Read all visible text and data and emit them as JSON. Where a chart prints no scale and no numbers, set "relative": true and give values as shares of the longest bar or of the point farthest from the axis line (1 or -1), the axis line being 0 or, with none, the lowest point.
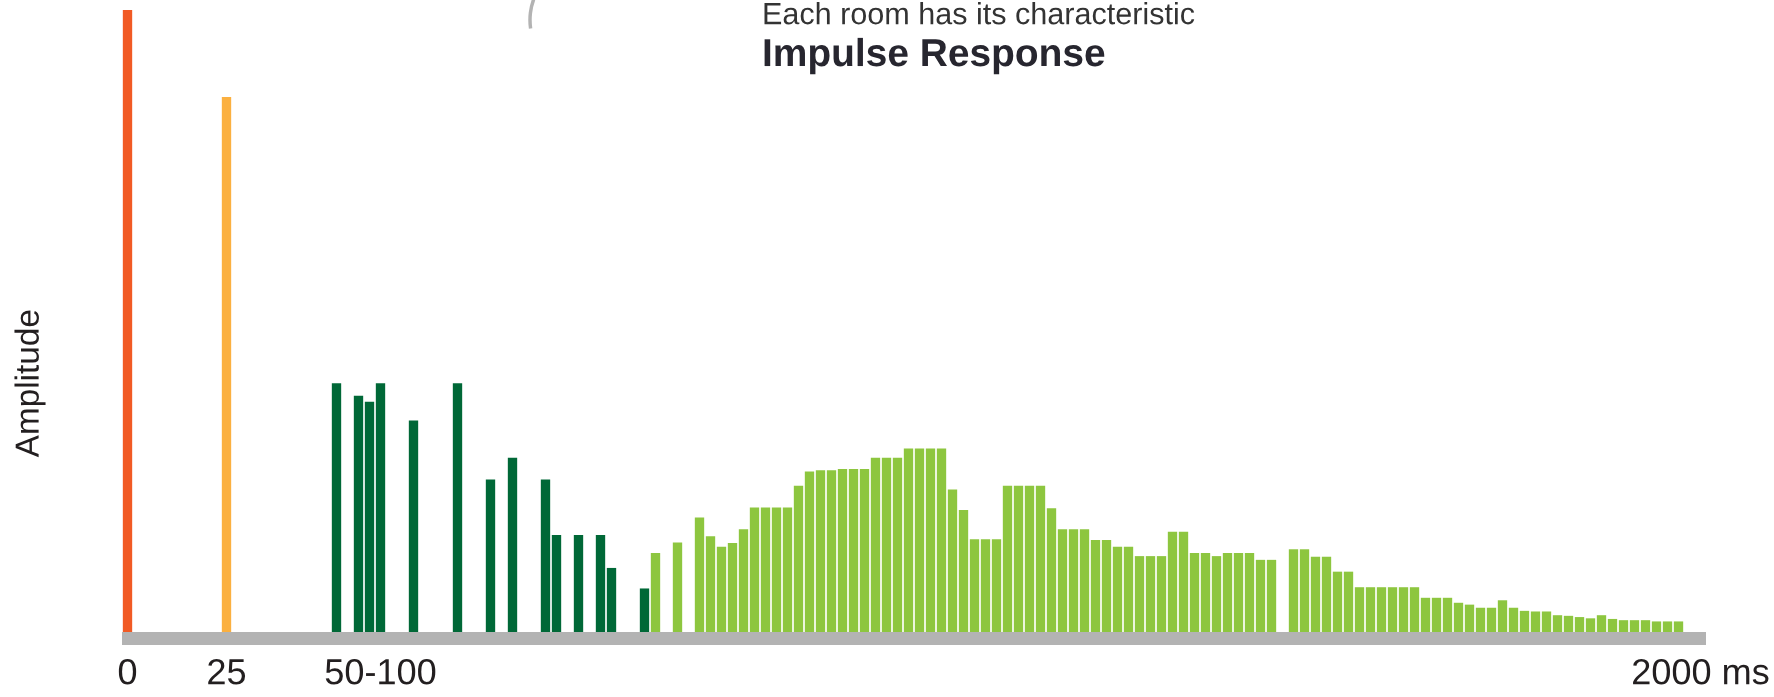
{
  "chart_data": {
    "type": "bar",
    "subtitle": "Each room has its characteristic",
    "title": "Impulse Response",
    "ylabel": "Amplitude",
    "relative": true,
    "tick_labels": "x",
    "grid": false,
    "legend": false,
    "categories": [
      "0",
      null,
      null,
      null,
      null,
      null,
      null,
      null,
      null,
      "25",
      null,
      null,
      null,
      null,
      null,
      null,
      null,
      null,
      null,
      null,
      null,
      null,
      null,
      "50-100",
      null,
      null,
      null,
      null,
      null,
      null,
      null,
      null,
      null,
      null,
      null,
      null,
      null,
      null,
      null,
      null,
      null,
      null,
      null,
      null,
      null,
      null,
      null,
      null,
      null,
      null,
      null,
      null,
      null,
      null,
      null,
      null,
      null,
      null,
      null,
      null,
      null,
      null,
      null,
      null,
      null,
      null,
      null,
      null,
      null,
      null,
      null,
      null,
      null,
      null,
      null,
      null,
      null,
      null,
      null,
      null,
      null,
      null,
      null,
      null,
      null,
      null,
      null,
      null,
      null,
      null,
      null,
      null,
      null,
      null,
      null,
      null,
      null,
      null,
      null,
      null,
      null,
      null,
      null,
      null,
      null,
      null,
      null,
      null,
      null,
      null,
      null,
      null,
      null,
      null,
      null,
      null,
      null,
      null,
      null,
      null,
      null,
      null,
      null,
      null,
      null,
      null,
      null,
      null,
      null,
      null,
      null,
      null,
      null,
      null,
      null,
      null,
      null,
      null,
      null,
      null,
      null,
      null,
      null,
      "2000 ms"
    ],
    "values": [
      1.0,
      null,
      null,
      null,
      null,
      null,
      null,
      null,
      null,
      0.86,
      null,
      null,
      null,
      null,
      null,
      null,
      null,
      null,
      null,
      0.4,
      null,
      0.38,
      0.37,
      0.4,
      null,
      null,
      0.34,
      null,
      null,
      null,
      0.4,
      null,
      null,
      0.245,
      null,
      0.28,
      null,
      null,
      0.245,
      0.156,
      null,
      0.156,
      null,
      0.156,
      0.103,
      null,
      null,
      0.07,
      0.127,
      null,
      0.144,
      null,
      0.184,
      0.154,
      0.137,
      0.143,
      0.165,
      0.2,
      0.2,
      0.2,
      0.2,
      0.235,
      0.258,
      0.26,
      0.26,
      0.262,
      0.262,
      0.262,
      0.28,
      0.28,
      0.28,
      0.295,
      0.295,
      0.295,
      0.295,
      0.229,
      0.196,
      0.149,
      0.149,
      0.149,
      0.235,
      0.235,
      0.235,
      0.235,
      0.199,
      0.165,
      0.165,
      0.165,
      0.148,
      0.148,
      0.137,
      0.137,
      0.122,
      0.122,
      0.122,
      0.161,
      0.161,
      0.127,
      0.127,
      0.122,
      0.127,
      0.127,
      0.127,
      0.116,
      0.116,
      null,
      0.133,
      0.133,
      0.121,
      0.121,
      0.097,
      0.097,
      0.072,
      0.072,
      0.072,
      0.072,
      0.072,
      0.072,
      0.055,
      0.055,
      0.055,
      0.047,
      0.044,
      0.039,
      0.039,
      0.051,
      0.039,
      0.034,
      0.033,
      0.033,
      0.027,
      0.026,
      0.024,
      0.022,
      0.027,
      0.021,
      0.019,
      0.019,
      0.019,
      0.017,
      0.017,
      0.017,
      null,
      null
    ],
    "colors": [
      "#f15a24",
      null,
      null,
      null,
      null,
      null,
      null,
      null,
      null,
      "#fbb040",
      null,
      null,
      null,
      null,
      null,
      null,
      null,
      null,
      null,
      "#006837",
      null,
      "#006837",
      "#006837",
      "#006837",
      null,
      null,
      "#006837",
      null,
      null,
      null,
      "#006837",
      null,
      null,
      "#006837",
      null,
      "#006837",
      null,
      null,
      "#006837",
      "#006837",
      null,
      "#006837",
      null,
      "#006837",
      "#006837",
      null,
      null,
      "#006837",
      "#8dc63f",
      null,
      "#8dc63f",
      null,
      "#8dc63f",
      "#8dc63f",
      "#8dc63f",
      "#8dc63f",
      "#8dc63f",
      "#8dc63f",
      "#8dc63f",
      "#8dc63f",
      "#8dc63f",
      "#8dc63f",
      "#8dc63f",
      "#8dc63f",
      "#8dc63f",
      "#8dc63f",
      "#8dc63f",
      "#8dc63f",
      "#8dc63f",
      "#8dc63f",
      "#8dc63f",
      "#8dc63f",
      "#8dc63f",
      "#8dc63f",
      "#8dc63f",
      "#8dc63f",
      "#8dc63f",
      "#8dc63f",
      "#8dc63f",
      "#8dc63f",
      "#8dc63f",
      "#8dc63f",
      "#8dc63f",
      "#8dc63f",
      "#8dc63f",
      "#8dc63f",
      "#8dc63f",
      "#8dc63f",
      "#8dc63f",
      "#8dc63f",
      "#8dc63f",
      "#8dc63f",
      "#8dc63f",
      "#8dc63f",
      "#8dc63f",
      "#8dc63f",
      "#8dc63f",
      "#8dc63f",
      "#8dc63f",
      "#8dc63f",
      "#8dc63f",
      "#8dc63f",
      "#8dc63f",
      "#8dc63f",
      "#8dc63f",
      null,
      "#8dc63f",
      "#8dc63f",
      "#8dc63f",
      "#8dc63f",
      "#8dc63f",
      "#8dc63f",
      "#8dc63f",
      "#8dc63f",
      "#8dc63f",
      "#8dc63f",
      "#8dc63f",
      "#8dc63f",
      "#8dc63f",
      "#8dc63f",
      "#8dc63f",
      "#8dc63f",
      "#8dc63f",
      "#8dc63f",
      "#8dc63f",
      "#8dc63f",
      "#8dc63f",
      "#8dc63f",
      "#8dc63f",
      "#8dc63f",
      "#8dc63f",
      "#8dc63f",
      "#8dc63f",
      "#8dc63f",
      "#8dc63f",
      "#8dc63f",
      "#8dc63f",
      "#8dc63f",
      "#8dc63f",
      "#8dc63f",
      "#8dc63f",
      "#8dc63f",
      null,
      null
    ]
  }
}
